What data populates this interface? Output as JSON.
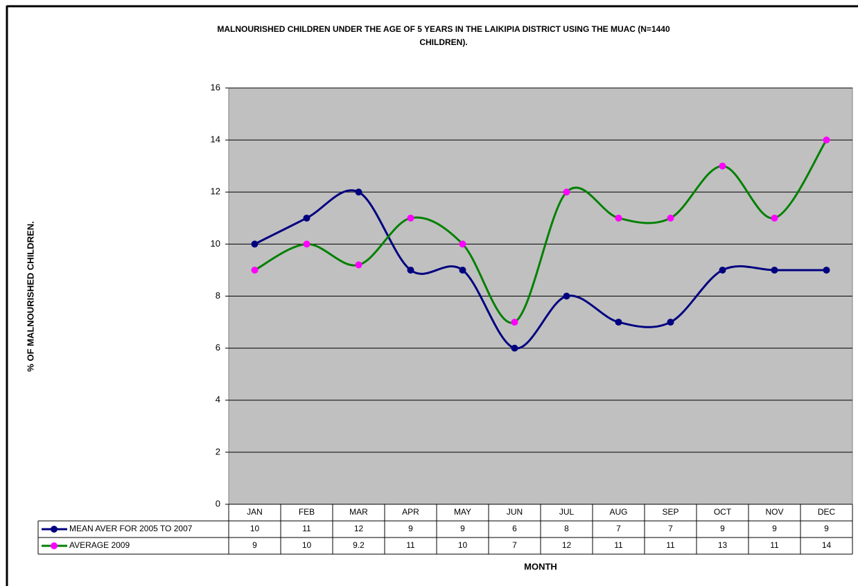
{
  "chart_data": {
    "type": "line",
    "title": [
      "MALNOURISHED CHILDREN UNDER THE AGE OF 5 YEARS IN THE LAIKIPIA DISTRICT USING THE MUAC  (N=1440",
      "CHILDREN)."
    ],
    "x_label": "MONTH",
    "y_label": "% OF MALNOURISHED CHILDREN.",
    "categories": [
      "JAN",
      "FEB",
      "MAR",
      "APR",
      "MAY",
      "JUN",
      "JUL",
      "AUG",
      "SEP",
      "OCT",
      "NOV",
      "DEC"
    ],
    "series": [
      {
        "name": "MEAN AVER FOR 2005 TO 2007",
        "color": "#000080",
        "marker_color": "#000080",
        "values": [
          10,
          11,
          12,
          9,
          9,
          6,
          8,
          7,
          7,
          9,
          9,
          9
        ]
      },
      {
        "name": "AVERAGE 2009",
        "color": "#008000",
        "marker_color": "#ff00ff",
        "values": [
          9,
          10,
          9.2,
          11,
          10,
          7,
          12,
          11,
          11,
          13,
          11,
          14
        ]
      }
    ],
    "ylim": [
      0,
      16
    ],
    "yticks": [
      0,
      2,
      4,
      6,
      8,
      10,
      12,
      14,
      16
    ],
    "grid": true,
    "smooth": true,
    "data_table": true
  }
}
